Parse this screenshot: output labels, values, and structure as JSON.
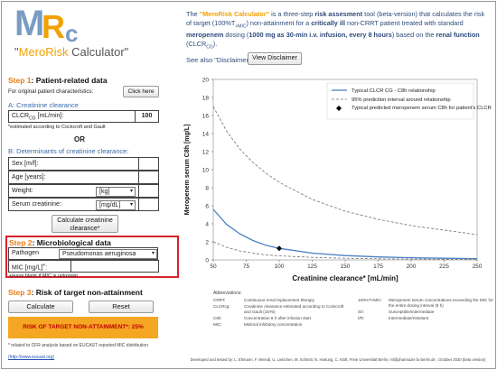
{
  "logo": {
    "m": "M",
    "r": "R",
    "c": "c",
    "name_quote_open": "\"",
    "name_mero": "Mero",
    "name_risk": "Risk",
    "name_rest": " Calculator\""
  },
  "header": {
    "intro_p1": "The ",
    "intro_title": "\"MeroRisk Calculator\"",
    "intro_p2": " is a three-step ",
    "intro_b1": "risk assesment",
    "intro_p3": " tool (beta-version) that calculates the risk of target (100%T",
    "intro_sub": ">MIC",
    "intro_p4": ") non-attainment for a ",
    "intro_b2": "critically ill",
    "intro_p5": " non-CRRT patient treated with standard ",
    "intro_b3": "meropenem",
    "intro_p6": " dosing (",
    "intro_b4": "1000 mg as 30-min i.v. infusion,  every 8 hours",
    "intro_p7": ") based on the ",
    "intro_b5": "renal function",
    "intro_p8": " (CLCR",
    "intro_sub2": "CG",
    "intro_p9": ").",
    "see_also": "See also \"Disclaimer\":",
    "view_disclaimer": "View Disclaimer"
  },
  "step1": {
    "title_num": "Step 1",
    "title_text": ": Patient-related data",
    "orig_label": "For original patient characteristics:",
    "click_here": "Click here",
    "sec_a": "A: Creatinine clearance",
    "clcr_label": "CLCR",
    "clcr_sub": "CG",
    "clcr_unit": " [mL/min]:",
    "clcr_value": "100",
    "est_note": "*estimated according to Cockcroft and Gault",
    "or": "OR",
    "sec_b": "B: Determinants of creatinine clearance:",
    "sex_label": "Sex [m/f]:",
    "age_label": "Age [years]:",
    "weight_label": "Weight:",
    "weight_unit": "[kg]",
    "serum_label": "Serum creatinine:",
    "serum_unit": "[mg/dL]",
    "calc_btn": "Calculate creatinine clearance*"
  },
  "step2": {
    "title_num": "Step 2",
    "title_text": ": Microbiological data",
    "pathogen_label": "Pathogen",
    "pathogen_value": "Pseudomonas aeruginosa",
    "mic_label": "MIC [mg/L]",
    "mic_sup": "+",
    "mic_colon": ":",
    "mic_note": "+leave blank if MIC is unknown"
  },
  "step3": {
    "title_num": "Step 3",
    "title_text": ": Risk of target non-attainment",
    "calculate": "Calculate",
    "reset": "Reset",
    "risk_text": "RISK OF TARGET NON-ATTAINMENT*: 25%",
    "related_note": "* related to CFR analysis based on EUCAST reported MIC distribution",
    "link": "(http://www.eucast.org)"
  },
  "chart_data": {
    "type": "line",
    "xlabel": "Creatinine clearance* [mL/min]",
    "ylabel": "Meropenem serum C8h [mg/L]",
    "xlim": [
      50,
      250
    ],
    "ylim": [
      0,
      20
    ],
    "x_ticks": [
      50,
      75,
      100,
      125,
      150,
      175,
      200,
      225,
      250
    ],
    "y_ticks": [
      0,
      2,
      4,
      6,
      8,
      10,
      12,
      14,
      16,
      18,
      20
    ],
    "legend": [
      "Typical CLCR CG - C8h relationship",
      "95% prediction interval around relationship",
      "Typical predicted meropenem serum C8h for patient's CLCR CG"
    ],
    "legend_placement": "top-right",
    "series": [
      {
        "name": "Typical CLCRCG - C8h relationship",
        "color": "#4a7fc1",
        "style": "solid",
        "x": [
          50,
          60,
          70,
          80,
          90,
          100,
          125,
          150,
          175,
          200,
          225,
          250
        ],
        "y": [
          5.6,
          3.95,
          2.9,
          2.15,
          1.62,
          1.28,
          0.75,
          0.48,
          0.33,
          0.24,
          0.18,
          0.14
        ]
      },
      {
        "name": "95% prediction interval upper",
        "color": "#6e6e6e",
        "style": "dashed",
        "x": [
          50,
          60,
          70,
          80,
          90,
          100,
          125,
          150,
          175,
          200,
          225,
          250
        ],
        "y": [
          17.0,
          14.3,
          12.3,
          10.8,
          9.6,
          8.6,
          6.7,
          5.4,
          4.5,
          3.8,
          3.3,
          2.8
        ]
      },
      {
        "name": "95% prediction interval lower",
        "color": "#6e6e6e",
        "style": "dashed",
        "x": [
          50,
          60,
          70,
          80,
          90,
          100,
          125,
          150,
          175,
          200,
          225,
          250
        ],
        "y": [
          2.0,
          1.4,
          1.0,
          0.75,
          0.55,
          0.45,
          0.28,
          0.18,
          0.12,
          0.09,
          0.07,
          0.05
        ]
      },
      {
        "name": "Typical predicted meropenem serum C8h for patient's CLCRCG",
        "color": "#000000",
        "style": "point",
        "x": [
          100
        ],
        "y": [
          1.28
        ]
      }
    ]
  },
  "footer": {
    "abbr_title": "Abbreviations:",
    "abbr_left": [
      [
        "CRRT:",
        "Continuous renal replacement therapy"
      ],
      [
        "CLCRcg:",
        "Creatinine clearance estimated according to Cockcroft and Gault (1976)"
      ],
      [
        "C8h:",
        "Concentration 8 h after infusion start"
      ],
      [
        "MIC:",
        "Minimal inhibitory concentration"
      ]
    ],
    "abbr_right": [
      [
        "100%T>MIC:",
        "Meropenem serum concentrations exceeding the MIC for the entire dosing interval (8 h)"
      ],
      [
        "S/I:",
        "Susceptible/intermediate"
      ],
      [
        "I/R:",
        "Intermediate/resistant"
      ]
    ],
    "credits": "Developed and tested by: L. Ehmann, F. Weindl, U. Liebchen, M. Schmitt, N. Hartung, C. Kloft, Freie Universität Berlin, ml@pharmazie.fu-berlin.de ; October 2020 (beta version)"
  }
}
